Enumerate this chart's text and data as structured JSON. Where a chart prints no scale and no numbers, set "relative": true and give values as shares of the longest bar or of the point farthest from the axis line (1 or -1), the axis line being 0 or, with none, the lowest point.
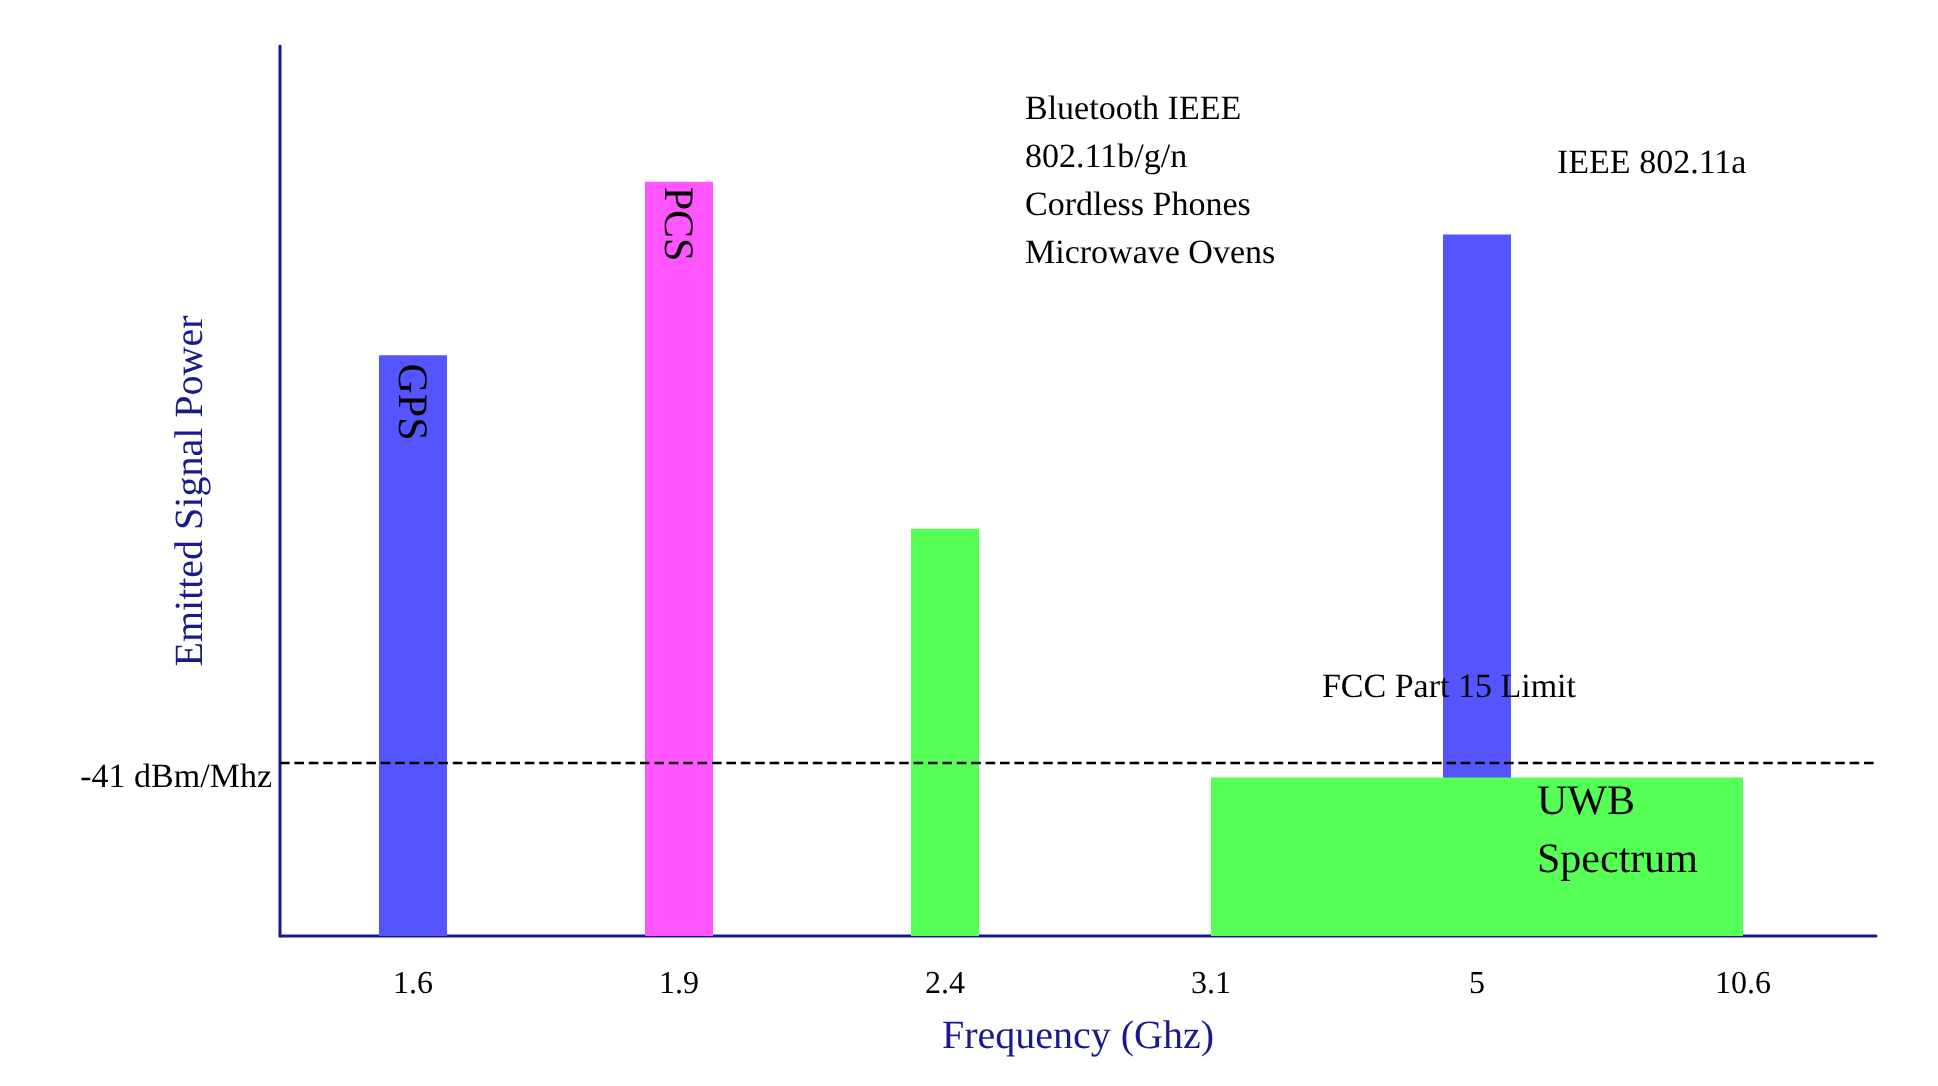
{
  "chart_data": {
    "type": "bar",
    "relative": true,
    "xlabel": "Frequency (Ghz)",
    "ylabel": "Emitted Signal Power",
    "categories": [
      "1.6",
      "1.9",
      "2.4",
      "3.1",
      "5",
      "10.6"
    ],
    "series": [
      {
        "colors": [
          "#5555ff",
          "#ff55ff",
          "#55ff55",
          null,
          "#5555ff",
          null
        ],
        "values": [
          0.77,
          1,
          0.54,
          null,
          0.93,
          null
        ]
      },
      {
        "type": "area",
        "color": "#55ff55",
        "values": [
          null,
          null,
          null,
          0.21,
          0.21,
          0.21
        ]
      }
    ],
    "ref_lines": [
      {
        "axis": "y",
        "value": 0.23,
        "label": "FCC Part 15 Limit",
        "color": "#000000",
        "line_style": "dashed"
      }
    ],
    "annotations": [
      "GPS",
      "PCS",
      "Bluetooth IEEE\n802.11b/g/n\nCordless Phones\nMicrowave Ovens",
      "IEEE 802.11a",
      "UWB\nSpectrum",
      "-41 dBm/Mhz"
    ],
    "grid": false
  }
}
